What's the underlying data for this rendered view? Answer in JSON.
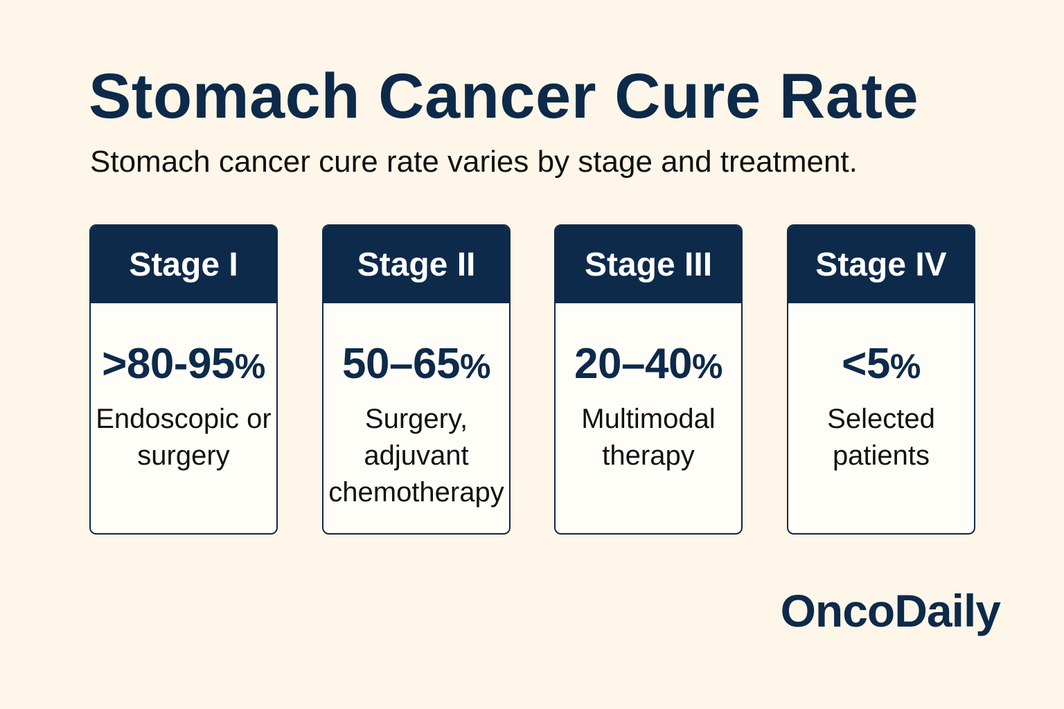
{
  "title": "Stomach Cancer Cure Rate",
  "subtitle": "Stomach cancer cure rate varies by stage and treatment.",
  "cards": [
    {
      "stage": "Stage I",
      "rate": ">80-95",
      "unit": "%",
      "treatment": "Endoscopic or surgery"
    },
    {
      "stage": "Stage II",
      "rate": "50–65",
      "unit": "%",
      "treatment": "Surgery, adjuvant chemotherapy"
    },
    {
      "stage": "Stage III",
      "rate": "20–40",
      "unit": "%",
      "treatment": "Multimodal therapy"
    },
    {
      "stage": "Stage IV",
      "rate": "<5",
      "unit": "%",
      "treatment": "Selected patients"
    }
  ],
  "brand": "OncoDaily",
  "colors": {
    "background": "#fdf6e9",
    "navy": "#0d2a4a",
    "card_body": "#fffdf8"
  }
}
